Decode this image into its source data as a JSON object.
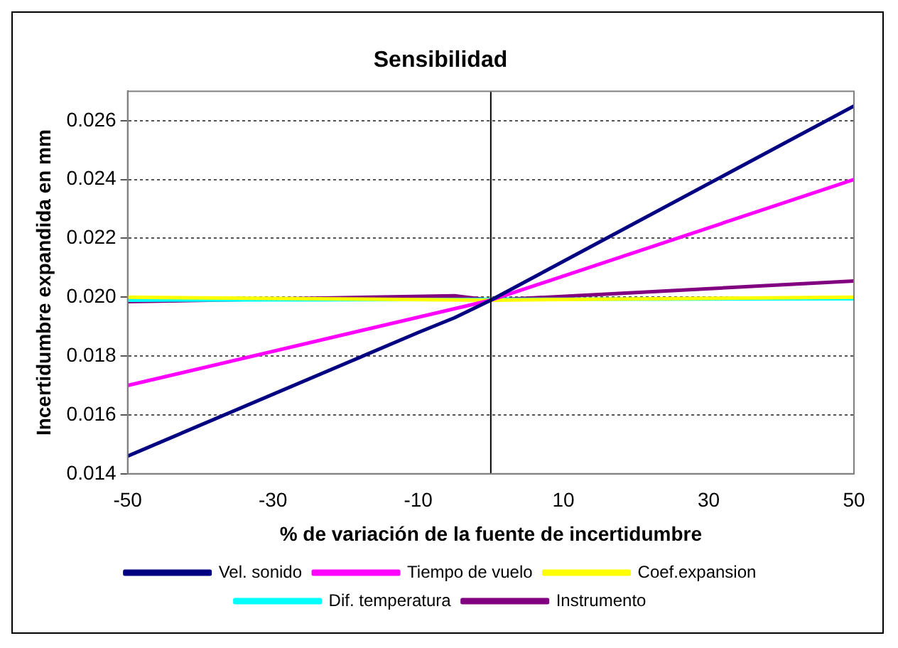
{
  "chart_data": {
    "type": "line",
    "title": "Sensibilidad",
    "xlabel": "% de variación de la fuente de incertidumbre",
    "ylabel": "Incertidumbre expandida en mm",
    "xlim": [
      -50,
      50
    ],
    "xticks": [
      -50,
      -30,
      -10,
      10,
      30,
      50
    ],
    "ylim": [
      0.014,
      0.027
    ],
    "yticks": [
      0.014,
      0.016,
      0.018,
      {
        "value": 0.02,
        "label": "0.020"
      },
      0.022,
      0.024,
      0.026
    ],
    "grid": "y",
    "legend": "bottom",
    "marker": "none",
    "line_style": "solid",
    "ref_lines": [
      {
        "axis": "x",
        "value": 0,
        "color": "#000000"
      }
    ],
    "series": [
      {
        "name": "Vel. sonido",
        "color": "#000080",
        "x": [
          -50,
          -10,
          -5,
          0,
          50
        ],
        "values": [
          0.0146,
          0.0188,
          0.0193,
          0.0199,
          0.0265
        ]
      },
      {
        "name": "Tiempo de vuelo",
        "color": "#ff00ff",
        "x": [
          -50,
          0,
          50
        ],
        "values": [
          0.017,
          0.0199,
          0.024
        ]
      },
      {
        "name": "Coef.expansion",
        "color": "#ffff00",
        "x": [
          -50,
          0,
          50
        ],
        "values": [
          0.02,
          0.0199,
          0.02
        ]
      },
      {
        "name": "Dif. temperatura",
        "color": "#00ffff",
        "x": [
          -50,
          50
        ],
        "values": [
          0.0199,
          0.01995
        ]
      },
      {
        "name": "Instrumento",
        "color": "#800080",
        "x": [
          -50,
          -5,
          0,
          50
        ],
        "values": [
          0.01985,
          0.02005,
          0.0199,
          0.02055
        ]
      }
    ]
  }
}
